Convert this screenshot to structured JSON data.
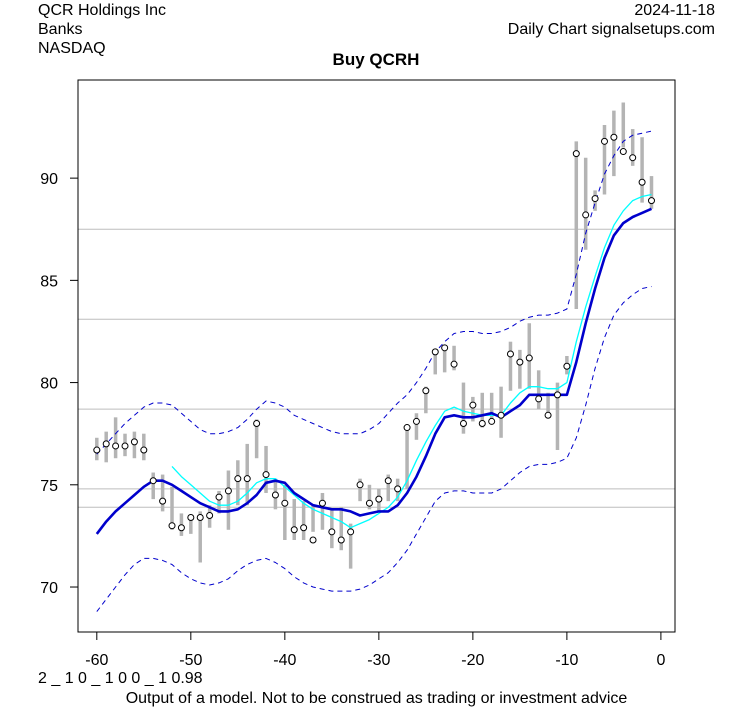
{
  "header": {
    "company": "QCR Holdings Inc",
    "sector": "Banks",
    "exchange": "NASDAQ",
    "date": "2024-11-18",
    "source": "Daily Chart signalsetups.com"
  },
  "footer": {
    "params": "2 _ 1 0 _ 1 0 0 _ 1 0.98",
    "disclaimer": "Output of a model. Not to be construed as trading or investment advice"
  },
  "chart_data": {
    "type": "line",
    "title": "Buy QCRH",
    "xlabel": "",
    "ylabel": "",
    "xlim": [
      -62,
      1.5
    ],
    "ylim": [
      67.8,
      94.8
    ],
    "x_ticks": [
      -60,
      -50,
      -40,
      -30,
      -20,
      -10,
      0
    ],
    "y_ticks": [
      70,
      75,
      80,
      85,
      90
    ],
    "hlines": [
      73.9,
      74.8,
      78.7,
      83.1,
      87.5
    ],
    "colors": {
      "bars": "#b4b4b4",
      "fast_ma": "#00ffff",
      "slow_ma": "#0000cc",
      "band": "#0000cc",
      "hline": "#bdbdbd"
    },
    "ohlc": {
      "name": "daily range",
      "x": [
        -60,
        -59,
        -58,
        -57,
        -56,
        -55,
        -54,
        -53,
        -52,
        -51,
        -50,
        -49,
        -48,
        -47,
        -46,
        -45,
        -44,
        -43,
        -42,
        -41,
        -40,
        -39,
        -38,
        -37,
        -36,
        -35,
        -34,
        -33,
        -32,
        -31,
        -30,
        -29,
        -28,
        -27,
        -26,
        -25,
        -24,
        -23,
        -22,
        -21,
        -20,
        -19,
        -18,
        -17,
        -16,
        -15,
        -14,
        -13,
        -12,
        -11,
        -10,
        -9,
        -8,
        -7,
        -6,
        -5,
        -4,
        -3,
        -2,
        -1
      ],
      "low": [
        76.2,
        76.1,
        76.3,
        76.4,
        76.3,
        76.2,
        74.3,
        73.7,
        72.8,
        72.5,
        72.6,
        71.2,
        72.9,
        73.6,
        72.8,
        74.0,
        74.0,
        76.3,
        74.6,
        73.8,
        72.3,
        72.3,
        72.3,
        72.7,
        72.8,
        71.9,
        71.8,
        70.9,
        74.2,
        73.8,
        73.7,
        74.2,
        74.2,
        74.8,
        77.2,
        78.5,
        80.4,
        80.5,
        80.6,
        77.5,
        78.1,
        77.8,
        78.2,
        77.3,
        79.6,
        79.7,
        79.7,
        78.7,
        78.3,
        76.7,
        80.4,
        83.6,
        86.5,
        88.4,
        89.2,
        90.1,
        91.5,
        90.6,
        88.8,
        88.5
      ],
      "high": [
        77.3,
        77.6,
        78.3,
        77.5,
        77.6,
        77.5,
        75.6,
        75.5,
        74.9,
        73.6,
        73.4,
        73.7,
        74.0,
        74.7,
        75.7,
        76.2,
        77.0,
        78.2,
        76.9,
        75.3,
        75.0,
        74.3,
        74.2,
        74.0,
        74.6,
        73.8,
        73.9,
        73.1,
        75.3,
        75.0,
        74.8,
        75.5,
        75.3,
        77.8,
        78.5,
        79.8,
        81.6,
        81.8,
        81.8,
        80.0,
        79.3,
        79.5,
        79.5,
        79.8,
        82.0,
        81.6,
        82.9,
        80.6,
        79.5,
        80.0,
        81.3,
        91.8,
        91.0,
        89.4,
        92.6,
        93.3,
        93.7,
        92.4,
        92.0,
        90.1
      ],
      "close": [
        76.7,
        77.0,
        76.9,
        76.9,
        77.1,
        76.7,
        75.2,
        74.2,
        73.0,
        72.9,
        73.4,
        73.4,
        73.5,
        74.4,
        74.7,
        75.3,
        75.3,
        78.0,
        75.5,
        74.5,
        74.1,
        72.8,
        72.9,
        72.3,
        74.1,
        72.7,
        72.3,
        72.7,
        75.0,
        74.1,
        74.3,
        75.2,
        74.8,
        77.8,
        78.1,
        79.6,
        81.5,
        81.7,
        80.9,
        78.0,
        78.9,
        78.0,
        78.1,
        78.4,
        81.4,
        81.0,
        81.2,
        79.2,
        78.4,
        79.4,
        80.8,
        91.2,
        88.2,
        89.0,
        91.8,
        92.0,
        91.3,
        91.0,
        89.8,
        88.9
      ]
    },
    "series": [
      {
        "name": "fast moving average",
        "x": [
          -52,
          -51,
          -50,
          -49,
          -48,
          -47,
          -46,
          -45,
          -44,
          -43,
          -42,
          -41,
          -40,
          -39,
          -38,
          -37,
          -36,
          -35,
          -34,
          -33,
          -32,
          -31,
          -30,
          -29,
          -28,
          -27,
          -26,
          -25,
          -24,
          -23,
          -22,
          -21,
          -20,
          -19,
          -18,
          -17,
          -16,
          -15,
          -14,
          -13,
          -12,
          -11,
          -10,
          -9,
          -8,
          -7,
          -6,
          -5,
          -4,
          -3,
          -2,
          -1
        ],
        "values": [
          75.9,
          75.4,
          75.0,
          74.6,
          74.2,
          74.0,
          74.0,
          74.2,
          74.6,
          75.1,
          75.3,
          75.3,
          74.9,
          74.5,
          74.1,
          73.8,
          73.6,
          73.4,
          73.2,
          72.9,
          73.1,
          73.3,
          73.6,
          73.9,
          74.4,
          75.2,
          76.2,
          77.1,
          77.9,
          78.6,
          78.8,
          78.6,
          78.5,
          78.4,
          78.4,
          78.4,
          79.0,
          79.5,
          79.8,
          79.8,
          79.7,
          79.7,
          80.0,
          82.0,
          83.7,
          85.2,
          86.6,
          87.7,
          88.4,
          88.9,
          89.1,
          89.2
        ]
      },
      {
        "name": "slow moving average",
        "x": [
          -60,
          -59,
          -58,
          -57,
          -56,
          -55,
          -54,
          -53,
          -52,
          -51,
          -50,
          -49,
          -48,
          -47,
          -46,
          -45,
          -44,
          -43,
          -42,
          -41,
          -40,
          -39,
          -38,
          -37,
          -36,
          -35,
          -34,
          -33,
          -32,
          -31,
          -30,
          -29,
          -28,
          -27,
          -26,
          -25,
          -24,
          -23,
          -22,
          -21,
          -20,
          -19,
          -18,
          -17,
          -16,
          -15,
          -14,
          -13,
          -12,
          -11,
          -10,
          -9,
          -8,
          -7,
          -6,
          -5,
          -4,
          -3,
          -2,
          -1
        ],
        "values": [
          72.6,
          73.2,
          73.7,
          74.1,
          74.5,
          74.9,
          75.2,
          75.2,
          75.0,
          74.7,
          74.4,
          74.1,
          73.9,
          73.7,
          73.7,
          73.8,
          74.1,
          74.5,
          75.1,
          75.2,
          75.1,
          74.6,
          74.3,
          74.0,
          73.9,
          73.8,
          73.8,
          73.7,
          73.5,
          73.6,
          73.7,
          73.7,
          74.0,
          74.6,
          75.4,
          76.4,
          77.5,
          78.3,
          78.4,
          78.3,
          78.3,
          78.4,
          78.5,
          78.3,
          78.6,
          78.9,
          79.4,
          79.4,
          79.4,
          79.4,
          79.4,
          81.0,
          82.9,
          84.6,
          86.1,
          87.2,
          87.8,
          88.1,
          88.3,
          88.5
        ]
      },
      {
        "name": "upper band",
        "dashed": true,
        "x": [
          -60,
          -59,
          -58,
          -57,
          -56,
          -55,
          -54,
          -53,
          -52,
          -51,
          -50,
          -49,
          -48,
          -47,
          -46,
          -45,
          -44,
          -43,
          -42,
          -41,
          -40,
          -39,
          -38,
          -37,
          -36,
          -35,
          -34,
          -33,
          -32,
          -31,
          -30,
          -29,
          -28,
          -27,
          -26,
          -25,
          -24,
          -23,
          -22,
          -21,
          -20,
          -19,
          -18,
          -17,
          -16,
          -15,
          -14,
          -13,
          -12,
          -11,
          -10,
          -9,
          -8,
          -7,
          -6,
          -5,
          -4,
          -3,
          -2,
          -1
        ],
        "values": [
          76.5,
          77.0,
          77.5,
          78.0,
          78.4,
          78.8,
          79.0,
          79.0,
          78.9,
          78.5,
          78.1,
          77.7,
          77.5,
          77.5,
          77.6,
          77.8,
          78.2,
          78.7,
          79.1,
          79.0,
          78.8,
          78.4,
          78.2,
          78.0,
          77.8,
          77.6,
          77.5,
          77.5,
          77.5,
          77.7,
          78.0,
          78.5,
          79.0,
          79.4,
          80.0,
          80.7,
          81.5,
          82.0,
          82.4,
          82.5,
          82.5,
          82.4,
          82.4,
          82.5,
          82.7,
          83.0,
          83.2,
          83.3,
          83.3,
          83.4,
          83.6,
          85.3,
          87.3,
          88.8,
          90.2,
          91.1,
          91.8,
          92.1,
          92.2,
          92.3
        ]
      },
      {
        "name": "lower band",
        "dashed": true,
        "x": [
          -60,
          -59,
          -58,
          -57,
          -56,
          -55,
          -54,
          -53,
          -52,
          -51,
          -50,
          -49,
          -48,
          -47,
          -46,
          -45,
          -44,
          -43,
          -42,
          -41,
          -40,
          -39,
          -38,
          -37,
          -36,
          -35,
          -34,
          -33,
          -32,
          -31,
          -30,
          -29,
          -28,
          -27,
          -26,
          -25,
          -24,
          -23,
          -22,
          -21,
          -20,
          -19,
          -18,
          -17,
          -16,
          -15,
          -14,
          -13,
          -12,
          -11,
          -10,
          -9,
          -8,
          -7,
          -6,
          -5,
          -4,
          -3,
          -2,
          -1
        ],
        "values": [
          68.8,
          69.4,
          70.0,
          70.6,
          71.1,
          71.4,
          71.4,
          71.3,
          71.1,
          70.7,
          70.4,
          70.2,
          70.1,
          70.2,
          70.4,
          70.8,
          71.1,
          71.3,
          71.4,
          71.2,
          70.9,
          70.5,
          70.2,
          70.0,
          69.9,
          69.8,
          69.8,
          69.8,
          69.9,
          70.1,
          70.4,
          70.7,
          71.2,
          71.8,
          72.6,
          73.4,
          74.2,
          74.6,
          74.7,
          74.7,
          74.6,
          74.6,
          74.6,
          74.8,
          75.2,
          75.6,
          75.9,
          76.0,
          76.0,
          76.1,
          76.3,
          77.3,
          78.9,
          80.7,
          82.2,
          83.3,
          83.9,
          84.3,
          84.6,
          84.7
        ]
      }
    ]
  }
}
